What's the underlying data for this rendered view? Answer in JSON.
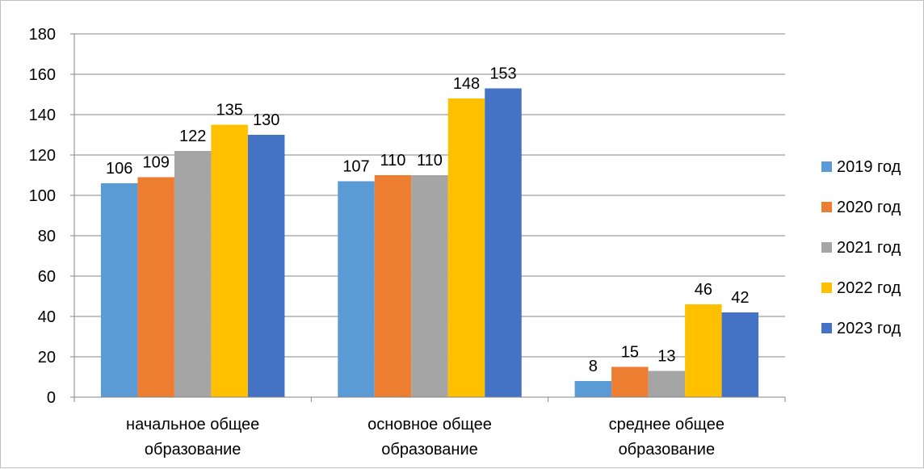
{
  "chart_data": {
    "type": "bar",
    "categories": [
      [
        "начальное общее",
        "образование"
      ],
      [
        "основное общее",
        "образование"
      ],
      [
        "среднее общее",
        "образование"
      ]
    ],
    "series": [
      {
        "name": "2019 год",
        "color": "#5b9bd5",
        "values": [
          106,
          107,
          8
        ]
      },
      {
        "name": "2020 год",
        "color": "#ed7d31",
        "values": [
          109,
          110,
          15
        ]
      },
      {
        "name": "2021 год",
        "color": "#a5a5a5",
        "values": [
          122,
          110,
          13
        ]
      },
      {
        "name": "2022 год",
        "color": "#ffc000",
        "values": [
          135,
          148,
          46
        ]
      },
      {
        "name": "2023 год",
        "color": "#4472c4",
        "values": [
          130,
          153,
          42
        ]
      }
    ],
    "ylim": [
      0,
      180
    ],
    "yticks": [
      0,
      20,
      40,
      60,
      80,
      100,
      120,
      140,
      160,
      180
    ],
    "grid": true,
    "legend_position": "right",
    "data_labels": true
  }
}
